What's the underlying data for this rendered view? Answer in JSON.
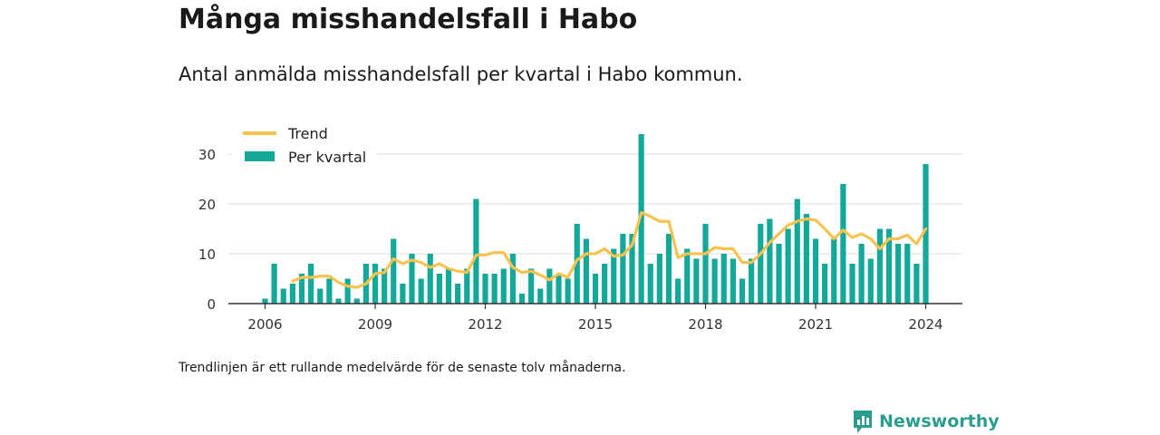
{
  "title": "Många misshandelsfall i Habo",
  "subtitle": "Antal anmälda misshandelsfall per kvartal i Habo kommun.",
  "footnote": "Trendlinjen är ett rullande medelvärde för de senaste tolv månaderna.",
  "brand": {
    "name": "Newsworthy",
    "icon": "bar-chart-speech-icon",
    "color": "#2a9d8f"
  },
  "colors": {
    "bar": "#14a89a",
    "trend": "#f6c350",
    "grid": "#dddddd",
    "axis": "#333333"
  },
  "chart_data": {
    "type": "bar",
    "xlim": [
      2006,
      2024
    ],
    "ylim": [
      0,
      35
    ],
    "x_ticks": [
      "2006",
      "2009",
      "2012",
      "2015",
      "2018",
      "2021",
      "2024"
    ],
    "y_ticks": [
      "0",
      "10",
      "20",
      "30"
    ],
    "grid": "horizontal",
    "legend": {
      "position": "top-left",
      "entries": [
        "Trend",
        "Per kvartal"
      ]
    },
    "series": [
      {
        "name": "Per kvartal",
        "type": "bar",
        "start_quarter": "2006 Q1",
        "values": [
          1,
          8,
          3,
          4,
          6,
          8,
          3,
          5,
          1,
          5,
          1,
          8,
          8,
          7,
          13,
          4,
          10,
          5,
          10,
          6,
          7,
          4,
          7,
          21,
          6,
          6,
          7,
          10,
          2,
          7,
          3,
          7,
          6,
          5,
          16,
          13,
          6,
          8,
          11,
          14,
          14,
          34,
          8,
          10,
          14,
          5,
          11,
          9,
          16,
          9,
          10,
          9,
          5,
          9,
          16,
          17,
          12,
          15,
          21,
          18,
          13,
          8,
          13,
          24,
          8,
          12,
          9,
          15,
          15,
          12,
          12,
          8,
          28
        ]
      },
      {
        "name": "Trend",
        "type": "line",
        "start_quarter": "2006 Q4",
        "values": [
          4.5,
          5.25,
          5.25,
          5.5,
          5.5,
          4.25,
          3.5,
          3.25,
          4,
          6,
          6.25,
          9,
          8,
          8.75,
          8.25,
          7.25,
          8,
          7,
          6.5,
          6.25,
          9.75,
          9.75,
          10.25,
          10.25,
          7.25,
          6.25,
          6.5,
          5.75,
          4.75,
          6,
          5.25,
          8.75,
          10,
          10,
          11,
          9.5,
          9.75,
          11.75,
          18.25,
          17.5,
          16.5,
          16.5,
          9.25,
          10,
          10,
          10,
          11.25,
          11,
          11,
          8.25,
          8.25,
          10,
          12.25,
          14,
          15.75,
          16.5,
          17,
          16.75,
          15,
          13,
          14.75,
          13.25,
          14,
          13,
          11,
          13,
          13,
          13.75,
          12,
          15
        ]
      }
    ]
  }
}
